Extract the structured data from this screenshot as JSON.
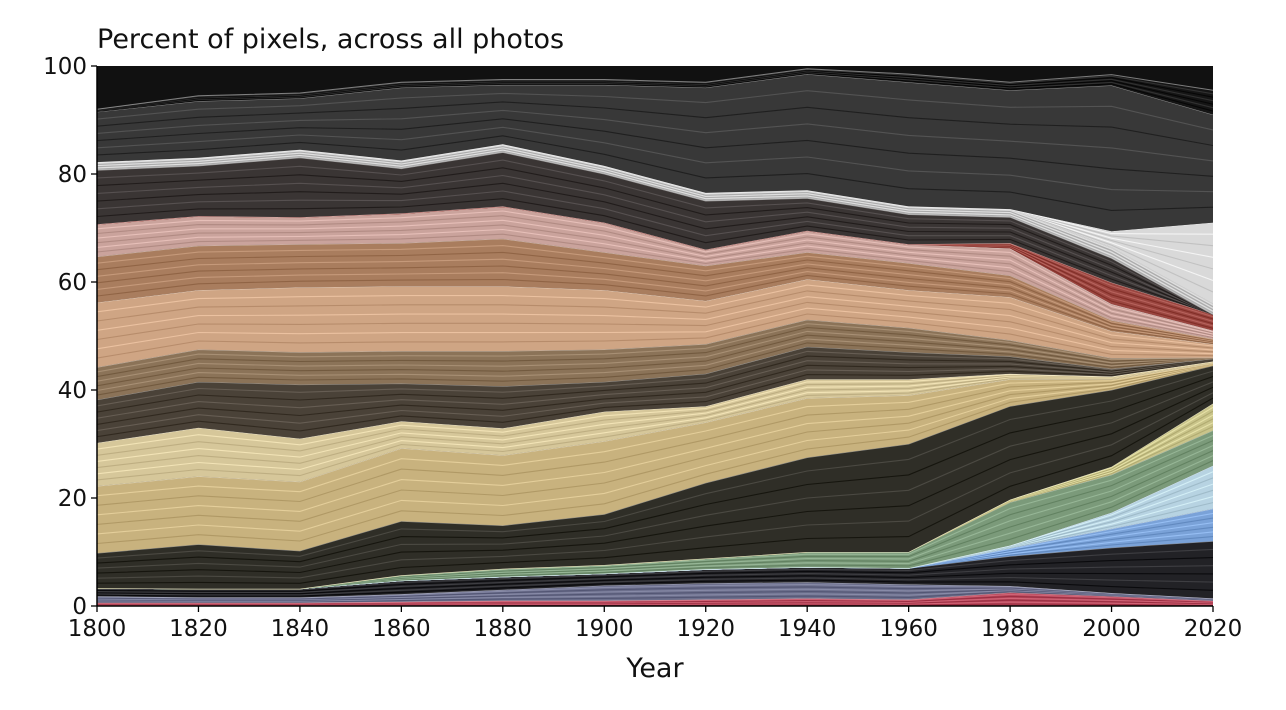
{
  "chart_data": {
    "type": "area",
    "title": "Percent of pixels, across all photos",
    "xlabel": "Year",
    "ylabel": "",
    "xlim": [
      1800,
      2020
    ],
    "ylim": [
      0,
      100
    ],
    "x_ticks": [
      1800,
      1820,
      1840,
      1860,
      1880,
      1900,
      1920,
      1940,
      1960,
      1980,
      2000,
      2020
    ],
    "y_ticks": [
      0,
      20,
      40,
      60,
      80,
      100
    ],
    "x": [
      1800,
      1820,
      1840,
      1860,
      1880,
      1900,
      1920,
      1940,
      1960,
      1980,
      2000,
      2020
    ],
    "grid": false,
    "legend": "none",
    "stacked": true,
    "series": [
      {
        "color": "#b5475a",
        "values": [
          0.6,
          0.6,
          0.6,
          0.8,
          1.0,
          1.0,
          1.2,
          1.4,
          1.2,
          2.5,
          1.8,
          1.0
        ]
      },
      {
        "color": "#6c6f8c",
        "values": [
          1.2,
          1.0,
          1.0,
          1.4,
          2.0,
          2.8,
          3.0,
          3.0,
          2.8,
          1.2,
          0.6,
          0.4
        ]
      },
      {
        "color": "#222226",
        "values": [
          1.5,
          1.6,
          1.6,
          2.5,
          2.4,
          2.2,
          2.6,
          2.8,
          3.0,
          5.5,
          8.4,
          10.6
        ]
      },
      {
        "color": "#7aa2d8",
        "values": [
          0.0,
          0.0,
          0.0,
          0.0,
          0.0,
          0.0,
          0.0,
          0.0,
          0.0,
          1.5,
          3.5,
          6.0
        ]
      },
      {
        "color": "#b7d3e2",
        "values": [
          0.0,
          0.0,
          0.0,
          0.0,
          0.0,
          0.0,
          0.0,
          0.0,
          0.0,
          0.5,
          3.0,
          8.0
        ]
      },
      {
        "color": "#7b9a7a",
        "values": [
          0.0,
          0.0,
          0.0,
          1.0,
          1.5,
          1.6,
          2.0,
          2.8,
          3.0,
          8.0,
          7.0,
          6.5
        ]
      },
      {
        "color": "#c9c48a",
        "values": [
          0.0,
          0.0,
          0.0,
          0.0,
          0.0,
          0.0,
          0.0,
          0.0,
          0.0,
          0.5,
          1.5,
          5.0
        ]
      },
      {
        "color": "#2f2e27",
        "values": [
          6.5,
          8.2,
          7.0,
          10.0,
          8.0,
          9.4,
          14.0,
          17.5,
          20.0,
          17.3,
          14.2,
          7.0
        ]
      },
      {
        "color": "#c8b27e",
        "values": [
          12.4,
          12.6,
          12.8,
          13.5,
          13.0,
          13.5,
          11.2,
          11.0,
          9.0,
          5.0,
          2.0,
          0.5
        ]
      },
      {
        "color": "#d6c79a",
        "values": [
          8.0,
          9.0,
          8.0,
          5.0,
          5.0,
          5.5,
          3.0,
          3.5,
          3.0,
          1.0,
          0.5,
          0.3
        ]
      },
      {
        "color": "#4a4238",
        "values": [
          8.0,
          8.5,
          10.0,
          7.0,
          7.8,
          5.5,
          6.0,
          6.0,
          5.0,
          3.2,
          1.4,
          0.5
        ]
      },
      {
        "color": "#8b7358",
        "values": [
          6.0,
          6.0,
          6.0,
          6.0,
          6.5,
          6.0,
          5.5,
          5.0,
          4.5,
          3.0,
          2.0,
          0.2
        ]
      },
      {
        "color": "#cfa584",
        "values": [
          12.0,
          11.0,
          12.0,
          12.0,
          12.0,
          11.0,
          8.0,
          7.5,
          7.0,
          8.0,
          5.0,
          2.5
        ]
      },
      {
        "color": "#a97d5e",
        "values": [
          8.5,
          8.2,
          8.0,
          8.0,
          8.8,
          7.0,
          6.5,
          5.0,
          5.0,
          4.0,
          2.0,
          1.0
        ]
      },
      {
        "color": "#caa39c",
        "values": [
          6.0,
          5.5,
          5.0,
          5.5,
          6.0,
          5.5,
          3.0,
          4.0,
          3.5,
          5.0,
          3.0,
          1.5
        ]
      },
      {
        "color": "#9a4640",
        "values": [
          0.0,
          0.0,
          0.0,
          0.0,
          0.0,
          0.0,
          0.0,
          0.0,
          0.0,
          1.0,
          4.0,
          3.0
        ]
      },
      {
        "color": "#3a3534",
        "values": [
          10.0,
          9.3,
          11.0,
          8.3,
          10.0,
          9.0,
          9.0,
          6.0,
          5.5,
          4.8,
          4.5,
          0.0
        ]
      },
      {
        "color": "#c4c4c4",
        "values": [
          1.5,
          1.5,
          1.5,
          1.5,
          1.5,
          1.5,
          1.5,
          1.5,
          1.5,
          1.5,
          2.0,
          2.0
        ]
      },
      {
        "color": "#d9d9d9",
        "values": [
          0.0,
          0.0,
          0.0,
          0.0,
          0.0,
          0.0,
          0.0,
          0.0,
          0.0,
          0.0,
          3.0,
          15.0
        ]
      },
      {
        "color": "#383838",
        "values": [
          9.3,
          10.5,
          9.5,
          13.5,
          11.0,
          15.0,
          19.5,
          21.5,
          23.0,
          22.0,
          27.0,
          20.0
        ]
      },
      {
        "color": "#151515",
        "values": [
          0.5,
          1.0,
          1.0,
          1.0,
          1.0,
          1.0,
          1.0,
          1.0,
          1.5,
          1.5,
          2.0,
          4.5
        ]
      }
    ]
  }
}
